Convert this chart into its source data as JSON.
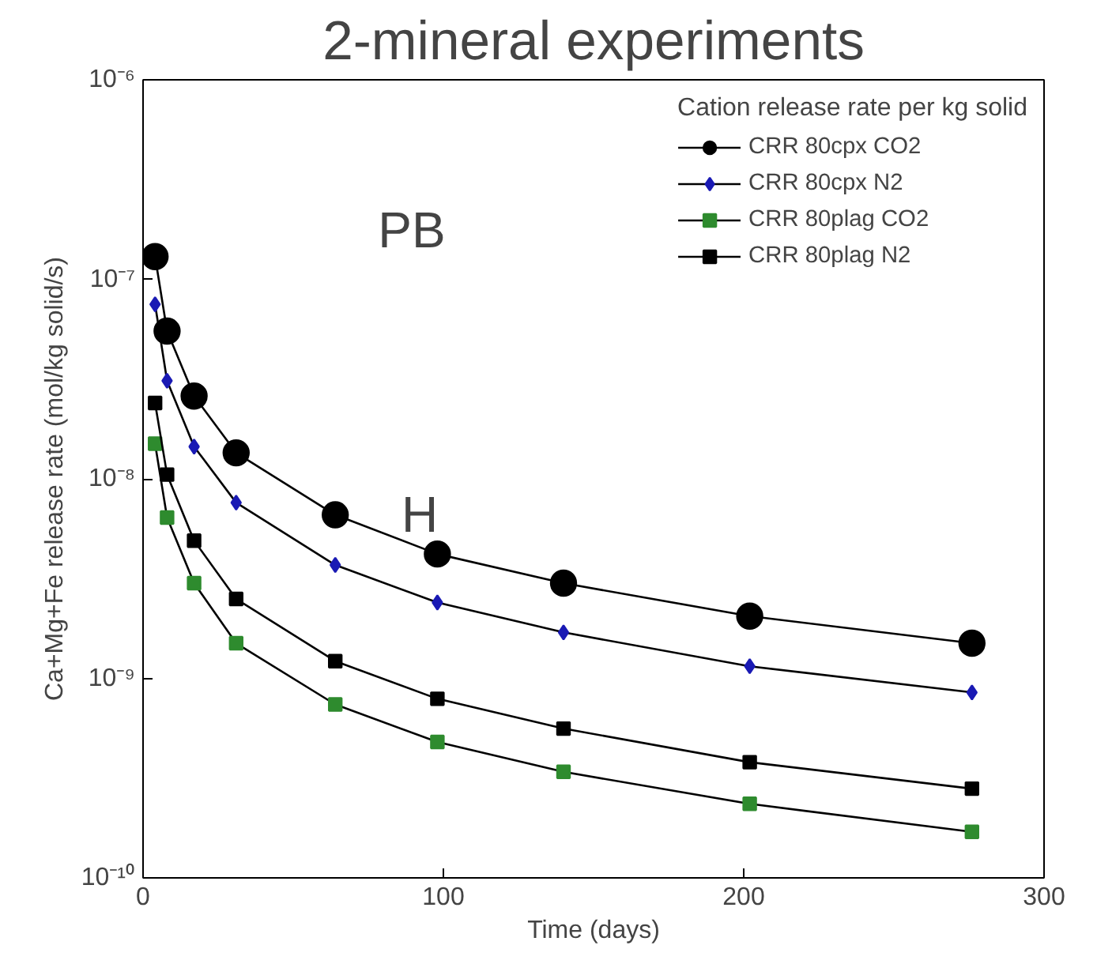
{
  "chart_data": {
    "type": "line",
    "title": "2-mineral experiments",
    "xlabel": "Time (days)",
    "ylabel": "Ca+Mg+Fe release rate (mol/kg solid/s)",
    "legend_title": "Cation release rate per kg solid",
    "log": "y",
    "grid": false,
    "legend": "top right",
    "x": [
      4,
      8,
      17,
      31,
      64,
      98,
      140,
      202,
      276
    ],
    "xlim": [
      0,
      300
    ],
    "xticks": [
      0,
      100,
      200,
      300
    ],
    "ylim": [
      1e-10,
      1e-06
    ],
    "yticks": [
      {
        "value": 1e-10,
        "label": "10⁻¹⁰"
      },
      {
        "value": 1e-09,
        "label": "10⁻⁹"
      },
      {
        "value": 1e-08,
        "label": "10⁻⁸"
      },
      {
        "value": 1e-07,
        "label": "10⁻⁷"
      },
      {
        "value": 1e-06,
        "label": "10⁻⁶"
      }
    ],
    "series": [
      {
        "name": "CRR 80cpx CO2",
        "color": "#000000",
        "marker": "circle",
        "values": [
          1.3e-07,
          5.5e-08,
          2.6e-08,
          1.35e-08,
          6.6e-09,
          4.2e-09,
          3e-09,
          2.05e-09,
          1.5e-09
        ]
      },
      {
        "name": "CRR 80cpx N2",
        "color": "#1a1ab4",
        "marker": "diamond",
        "values": [
          7.5e-08,
          3.1e-08,
          1.45e-08,
          7.6e-09,
          3.7e-09,
          2.4e-09,
          1.7e-09,
          1.15e-09,
          8.5e-10
        ]
      },
      {
        "name": "CRR 80plag CO2",
        "color": "#2e8b2e",
        "marker": "square",
        "values": [
          1.5e-08,
          6.4e-09,
          3e-09,
          1.5e-09,
          7.4e-10,
          4.8e-10,
          3.4e-10,
          2.35e-10,
          1.7e-10
        ]
      },
      {
        "name": "CRR 80plag N2",
        "color": "#000000",
        "marker": "square",
        "values": [
          2.4e-08,
          1.05e-08,
          4.9e-09,
          2.5e-09,
          1.22e-09,
          7.9e-10,
          5.6e-10,
          3.8e-10,
          2.8e-10
        ]
      }
    ],
    "annotations": [
      "PB",
      "H"
    ]
  }
}
